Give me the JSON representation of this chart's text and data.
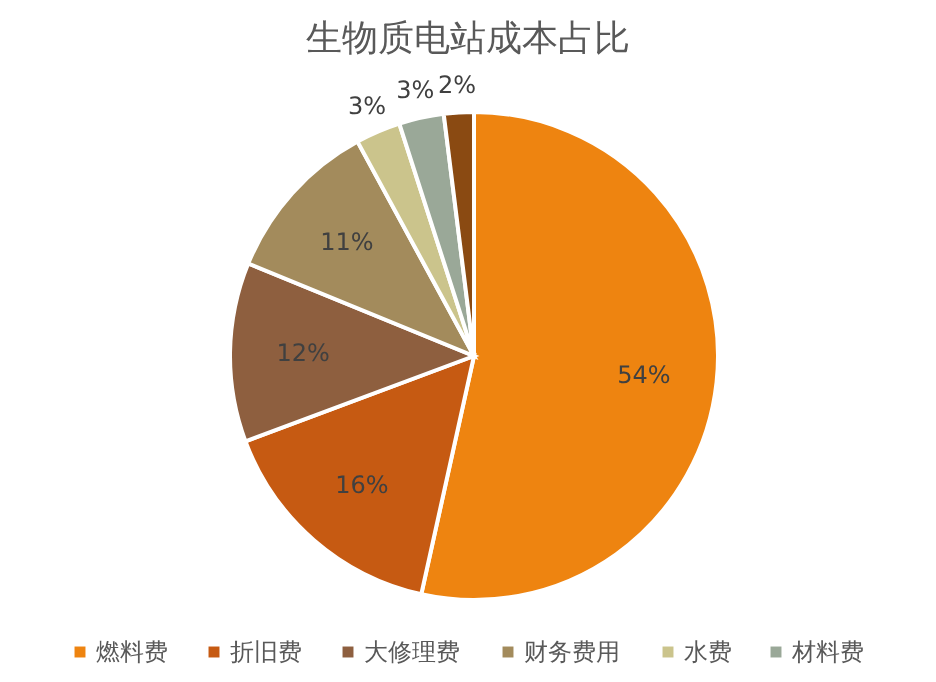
{
  "chart_data": {
    "type": "pie",
    "title": "生物质电站成本占比",
    "categories": [
      "燃料费",
      "折旧费",
      "大修理费",
      "财务费用",
      "水费",
      "材料费",
      null
    ],
    "values": [
      54,
      16,
      12,
      11,
      3,
      3,
      2
    ],
    "colors": [
      "#ee8410",
      "#c65a12",
      "#8e5f3f",
      "#a38b5c",
      "#cbc48c",
      "#9aa898",
      "#8a4a12"
    ],
    "value_labels": [
      "54%",
      "16%",
      "12%",
      "11%",
      "3%",
      "3%",
      "2%"
    ],
    "legend": "bottom"
  }
}
